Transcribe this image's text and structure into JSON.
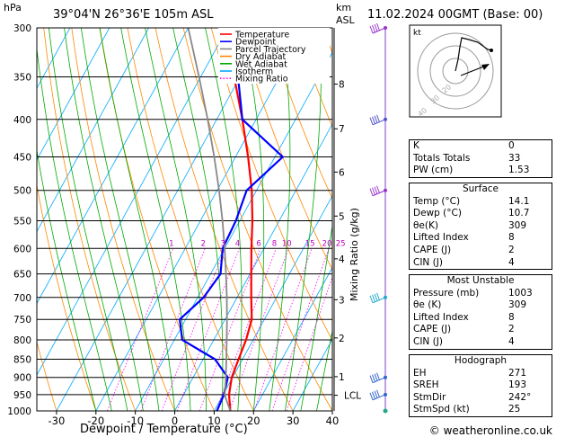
{
  "header": {
    "station": "39°04'N  26°36'E  105m  ASL",
    "datetime": "11.02.2024  00GMT  (Base: 00)",
    "hpa_label": "hPa",
    "km_label": "km",
    "asl_label": "ASL"
  },
  "hodo_unit": "kt",
  "legend": [
    {
      "label": "Temperature",
      "color": "#ff0000"
    },
    {
      "label": "Dewpoint",
      "color": "#0000ff"
    },
    {
      "label": "Parcel Trajectory",
      "color": "#888888"
    },
    {
      "label": "Dry Adiabat",
      "color": "#ff8800"
    },
    {
      "label": "Wet Adiabat",
      "color": "#00aa00"
    },
    {
      "label": "Isotherm",
      "color": "#00aaff"
    },
    {
      "label": "Mixing Ratio",
      "color": "#ff00ff"
    }
  ],
  "indices": [
    {
      "label": "K",
      "value": "0"
    },
    {
      "label": "Totals Totals",
      "value": "33"
    },
    {
      "label": "PW (cm)",
      "value": "1.53"
    }
  ],
  "surface": {
    "title": "Surface",
    "rows": [
      {
        "label": "Temp (°C)",
        "value": "14.1"
      },
      {
        "label": "Dewp (°C)",
        "value": "10.7"
      },
      {
        "label": "θe(K)",
        "value": "309"
      },
      {
        "label": "Lifted Index",
        "value": "8"
      },
      {
        "label": "CAPE (J)",
        "value": "2"
      },
      {
        "label": "CIN (J)",
        "value": "4"
      }
    ]
  },
  "most_unstable": {
    "title": "Most Unstable",
    "rows": [
      {
        "label": "Pressure (mb)",
        "value": "1003"
      },
      {
        "label": "θe (K)",
        "value": "309"
      },
      {
        "label": "Lifted Index",
        "value": "8"
      },
      {
        "label": "CAPE (J)",
        "value": "2"
      },
      {
        "label": "CIN (J)",
        "value": "4"
      }
    ]
  },
  "hodograph": {
    "title": "Hodograph",
    "rows": [
      {
        "label": "EH",
        "value": "271"
      },
      {
        "label": "SREH",
        "value": "193"
      },
      {
        "label": "StmDir",
        "value": "242°"
      },
      {
        "label": "StmSpd (kt)",
        "value": "25"
      }
    ]
  },
  "copyright": "© weatheronline.co.uk",
  "chart_data": {
    "type": "line",
    "xlabel": "Dewpoint / Temperature (°C)",
    "ylabel": "Mixing Ratio (g/kg)",
    "xlim": [
      -35,
      40
    ],
    "x_ticks": [
      -30,
      -20,
      -10,
      0,
      10,
      20,
      30,
      40
    ],
    "pressure_levels": [
      300,
      350,
      400,
      450,
      500,
      550,
      600,
      650,
      700,
      750,
      800,
      850,
      900,
      950,
      1000
    ],
    "km_ticks": [
      {
        "label": "8",
        "p": 358
      },
      {
        "label": "7",
        "p": 412
      },
      {
        "label": "6",
        "p": 472
      },
      {
        "label": "5",
        "p": 542
      },
      {
        "label": "4",
        "p": 620
      },
      {
        "label": "3",
        "p": 705
      },
      {
        "label": "2",
        "p": 795
      },
      {
        "label": "1",
        "p": 898
      },
      {
        "label": "LCL",
        "p": 952
      }
    ],
    "mixing_ratio_labels": [
      "1",
      "2",
      "3",
      "4",
      "6",
      "8",
      "10",
      "15",
      "20",
      "25"
    ],
    "hodo_rings": [
      "40",
      "30",
      "20"
    ],
    "series": [
      {
        "name": "Temperature",
        "color": "#ff0000",
        "points": [
          [
            1000,
            14.1
          ],
          [
            950,
            11.5
          ],
          [
            900,
            9.8
          ],
          [
            850,
            9.0
          ],
          [
            800,
            8.2
          ],
          [
            750,
            6.8
          ],
          [
            700,
            3.6
          ],
          [
            650,
            0.3
          ],
          [
            600,
            -3.2
          ],
          [
            550,
            -6.8
          ],
          [
            500,
            -11.2
          ],
          [
            450,
            -16.8
          ],
          [
            400,
            -23.5
          ],
          [
            350,
            -31.5
          ],
          [
            300,
            -41.5
          ]
        ]
      },
      {
        "name": "Dewpoint",
        "color": "#0000ff",
        "points": [
          [
            1000,
            10.7
          ],
          [
            950,
            10.2
          ],
          [
            900,
            8.8
          ],
          [
            850,
            3.0
          ],
          [
            800,
            -8.0
          ],
          [
            750,
            -11.5
          ],
          [
            700,
            -8.5
          ],
          [
            650,
            -7.5
          ],
          [
            600,
            -10.5
          ],
          [
            550,
            -11.0
          ],
          [
            500,
            -12.5
          ],
          [
            450,
            -8.0
          ],
          [
            400,
            -23.5
          ],
          [
            350,
            -30.5
          ],
          [
            300,
            -41.5
          ]
        ]
      },
      {
        "name": "Parcel Trajectory",
        "color": "#888888",
        "points": [
          [
            1000,
            14.1
          ],
          [
            952,
            10.5
          ],
          [
            900,
            8.3
          ],
          [
            850,
            5.9
          ],
          [
            800,
            3.3
          ],
          [
            750,
            0.5
          ],
          [
            700,
            -2.6
          ],
          [
            650,
            -6.1
          ],
          [
            600,
            -10.0
          ],
          [
            550,
            -14.4
          ],
          [
            500,
            -19.5
          ],
          [
            450,
            -25.4
          ],
          [
            400,
            -32.3
          ],
          [
            350,
            -40.4
          ],
          [
            300,
            -50.0
          ]
        ]
      }
    ]
  }
}
